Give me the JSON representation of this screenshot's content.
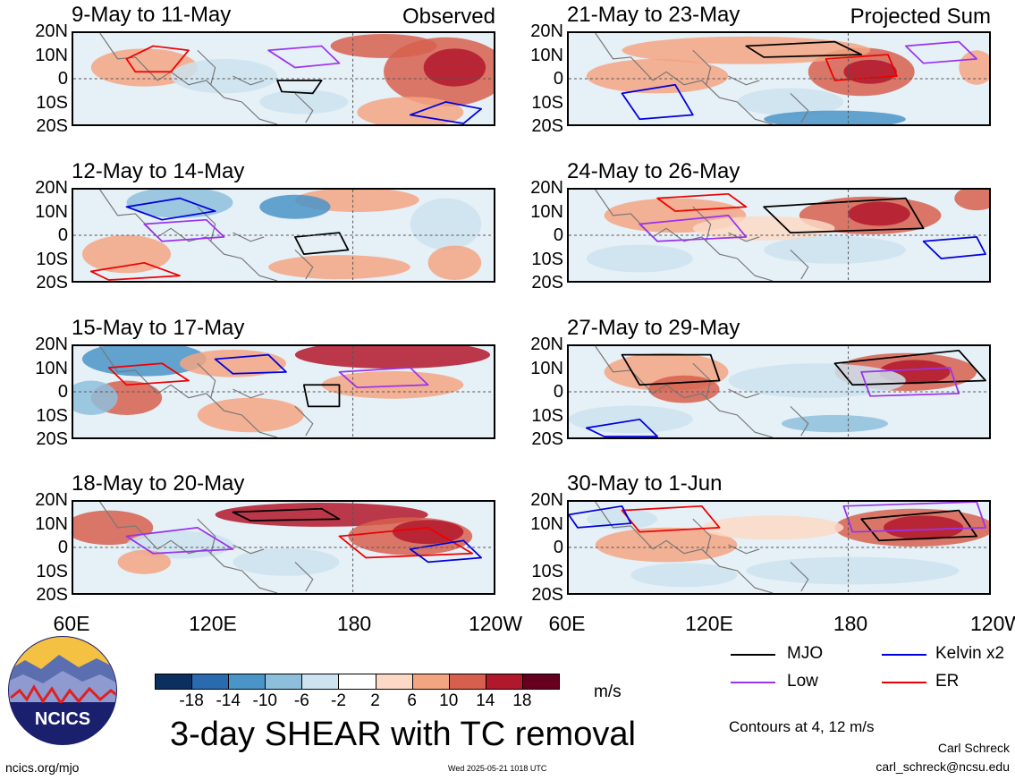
{
  "panels": [
    {
      "title": "9-May to 11-May",
      "tag": "Observed"
    },
    {
      "title": "12-May to 14-May",
      "tag": ""
    },
    {
      "title": "15-May to 17-May",
      "tag": ""
    },
    {
      "title": "18-May to 20-May",
      "tag": ""
    },
    {
      "title": "21-May to 23-May",
      "tag": "Projected Sum"
    },
    {
      "title": "24-May to 26-May",
      "tag": ""
    },
    {
      "title": "27-May to 29-May",
      "tag": ""
    },
    {
      "title": "30-May to 1-Jun",
      "tag": ""
    }
  ],
  "lat_labels": [
    "20N",
    "10N",
    "0",
    "10S",
    "20S"
  ],
  "lon_labels": [
    "60E",
    "120E",
    "180",
    "120W"
  ],
  "colorbar": {
    "ticks": [
      "-18",
      "-14",
      "-10",
      "-6",
      "-2",
      "2",
      "6",
      "10",
      "14",
      "18"
    ],
    "colors": [
      "#0b2f5e",
      "#2a6aae",
      "#4a94c8",
      "#8dbfdd",
      "#cde3f0",
      "#ffffff",
      "#fbd9c6",
      "#f3a582",
      "#d6604d",
      "#b2182b",
      "#67001f"
    ],
    "unit": "m/s"
  },
  "main_title": "3-day SHEAR with TC removal",
  "legend": [
    {
      "label": "MJO",
      "color": "#000000"
    },
    {
      "label": "Kelvin x2",
      "color": "#0000dd"
    },
    {
      "label": "Low",
      "color": "#9933ee"
    },
    {
      "label": "ER",
      "color": "#ee0000"
    }
  ],
  "contour_note": "Contours at 4, 12 m/s",
  "logo_text": "NCICS",
  "site": "ncics.org/mjo",
  "timestamp": "Wed 2025-05-21 1018 UTC",
  "author": "Carl Schreck",
  "email": "carl_schreck@ncsu.edu"
}
